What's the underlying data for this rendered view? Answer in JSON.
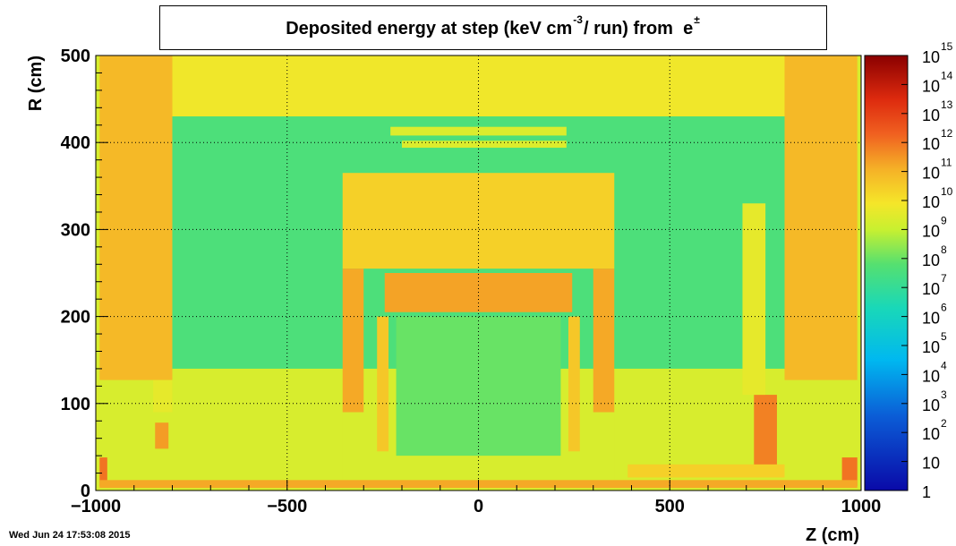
{
  "chart_data": {
    "type": "heatmap",
    "title_parts": {
      "before": "Deposited energy at step (keV cm",
      "exp": "-3",
      "middle": "/ run)  from",
      "particle": "e",
      "particle_sup": "±"
    },
    "xlabel": "Z (cm)",
    "ylabel": "R (cm)",
    "xlim": [
      -1000,
      1000
    ],
    "ylim": [
      0,
      500
    ],
    "x_ticks": [
      -1000,
      -500,
      0,
      500,
      1000
    ],
    "x_tick_labels": [
      "−1000",
      "−500",
      "0",
      "500",
      "1000"
    ],
    "y_ticks": [
      0,
      100,
      200,
      300,
      400,
      500
    ],
    "y_tick_labels": [
      "0",
      "100",
      "200",
      "300",
      "400",
      "500"
    ],
    "grid": true,
    "log_z": true,
    "zlim": [
      1,
      1000000000000000.0
    ],
    "colorbar_labels": [
      {
        "v": 1,
        "base": "1",
        "exp": ""
      },
      {
        "v": 10,
        "base": "10",
        "exp": ""
      },
      {
        "v": 2,
        "base": "10",
        "exp": "2"
      },
      {
        "v": 3,
        "base": "10",
        "exp": "3"
      },
      {
        "v": 4,
        "base": "10",
        "exp": "4"
      },
      {
        "v": 5,
        "base": "10",
        "exp": "5"
      },
      {
        "v": 6,
        "base": "10",
        "exp": "6"
      },
      {
        "v": 7,
        "base": "10",
        "exp": "7"
      },
      {
        "v": 8,
        "base": "10",
        "exp": "8"
      },
      {
        "v": 9,
        "base": "10",
        "exp": "9"
      },
      {
        "v": 10,
        "base": "10",
        "exp": "10"
      },
      {
        "v": 11,
        "base": "10",
        "exp": "11"
      },
      {
        "v": 12,
        "base": "10",
        "exp": "12"
      },
      {
        "v": 13,
        "base": "10",
        "exp": "13"
      },
      {
        "v": 14,
        "base": "10",
        "exp": "14"
      },
      {
        "v": 15,
        "base": "10",
        "exp": "15"
      }
    ],
    "background_log_value": 9.3,
    "regions": [
      {
        "z0": -800,
        "z1": 800,
        "r0": 430,
        "r1": 500,
        "v": 9.8
      },
      {
        "z0": -800,
        "z1": 800,
        "r0": 140,
        "r1": 430,
        "v": 7.6
      },
      {
        "z0": -1000,
        "z1": -800,
        "r0": 0,
        "r1": 500,
        "v": 9.3
      },
      {
        "z0": 800,
        "z1": 1000,
        "r0": 0,
        "r1": 500,
        "v": 9.3
      },
      {
        "z0": -990,
        "z1": -800,
        "r0": 127,
        "r1": 500,
        "v": 10.9
      },
      {
        "z0": 800,
        "z1": 990,
        "r0": 127,
        "r1": 500,
        "v": 10.9
      },
      {
        "z0": -355,
        "z1": 355,
        "r0": 0,
        "r1": 100,
        "v": 9.3
      },
      {
        "z0": -355,
        "z1": 355,
        "r0": 255,
        "r1": 365,
        "v": 10.4
      },
      {
        "z0": -355,
        "z1": -300,
        "r0": 90,
        "r1": 255,
        "v": 11.2
      },
      {
        "z0": 300,
        "z1": 355,
        "r0": 90,
        "r1": 255,
        "v": 11.2
      },
      {
        "z0": -245,
        "z1": 245,
        "r0": 205,
        "r1": 250,
        "v": 11.3
      },
      {
        "z0": -215,
        "z1": 215,
        "r0": 40,
        "r1": 200,
        "v": 8.0
      },
      {
        "z0": -265,
        "z1": -235,
        "r0": 45,
        "r1": 200,
        "v": 10.6
      },
      {
        "z0": 235,
        "z1": 265,
        "r0": 45,
        "r1": 200,
        "v": 10.6
      },
      {
        "z0": -230,
        "z1": 230,
        "r0": 408,
        "r1": 418,
        "v": 9.4
      },
      {
        "z0": -200,
        "z1": 230,
        "r0": 394,
        "r1": 402,
        "v": 9.4
      },
      {
        "z0": -850,
        "z1": -800,
        "r0": 90,
        "r1": 127,
        "v": 9.6
      },
      {
        "z0": -845,
        "z1": -810,
        "r0": 48,
        "r1": 78,
        "v": 11.4
      },
      {
        "z0": -990,
        "z1": -970,
        "r0": 5,
        "r1": 38,
        "v": 12.0
      },
      {
        "z0": 950,
        "z1": 990,
        "r0": 5,
        "r1": 38,
        "v": 12.0
      },
      {
        "z0": 720,
        "z1": 780,
        "r0": 20,
        "r1": 110,
        "v": 11.8
      },
      {
        "z0": 690,
        "z1": 750,
        "r0": 110,
        "r1": 330,
        "v": 9.6
      },
      {
        "z0": 390,
        "z1": 800,
        "r0": 15,
        "r1": 30,
        "v": 10.4
      },
      {
        "z0": -990,
        "z1": 990,
        "r0": 3,
        "r1": 12,
        "v": 11.2
      }
    ]
  },
  "footer": {
    "timestamp": "Wed Jun 24 17:53:08 2015"
  }
}
